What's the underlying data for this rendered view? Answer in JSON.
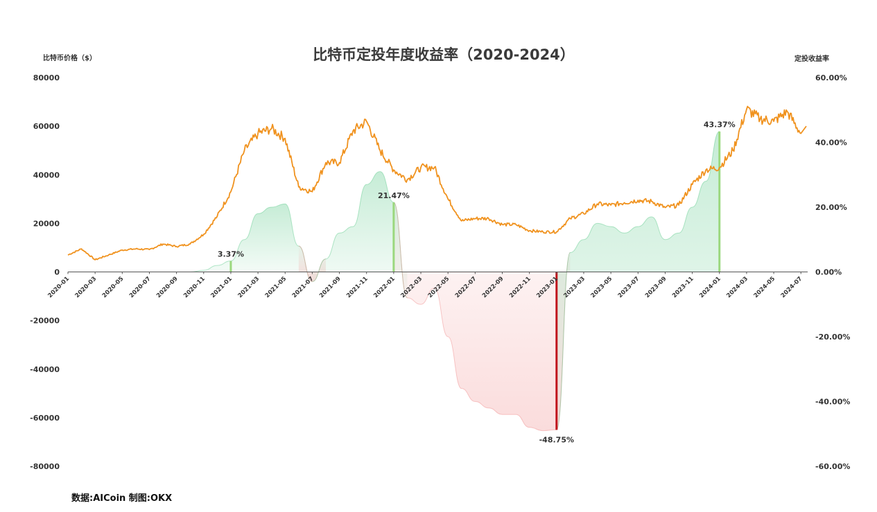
{
  "chart_data": {
    "type": "line",
    "title": "比特币定投年度收益率（2020-2024）",
    "ylabel": "比特币价格（$）",
    "y2label": "定投收益率",
    "ylim": [
      -80000,
      80000
    ],
    "y2lim": [
      -60,
      60
    ],
    "yticks": [
      "80000",
      "60000",
      "40000",
      "20000",
      "0",
      "-20000",
      "-40000",
      "-60000",
      "-80000"
    ],
    "y2ticks": [
      "60.00%",
      "40.00%",
      "20.00%",
      "0.00%",
      "-20.00%",
      "-40.00%",
      "-60.00%"
    ],
    "x_tick_labels": [
      "2020-01",
      "2020-03",
      "2020-05",
      "2020-07",
      "2020-09",
      "2020-11",
      "2021-01",
      "2021-03",
      "2021-05",
      "2021-07",
      "2021-09",
      "2021-11",
      "2022-01",
      "2022-03",
      "2022-05",
      "2022-07",
      "2022-09",
      "2022-11",
      "2023-01",
      "2023-03",
      "2023-05",
      "2023-07",
      "2023-09",
      "2023-11",
      "2024-01",
      "2024-03",
      "2024-05",
      "2024-07"
    ],
    "colors": {
      "price": "#f0921e",
      "positive": "#5cc98a",
      "negative": "#f08a8a",
      "bar_positive": "#9bd87e",
      "bar_negative": "#c0141c"
    },
    "series": [
      {
        "name": "比特币价格（$）",
        "axis": "left",
        "x": [
          "2020-01",
          "2020-02",
          "2020-03",
          "2020-04",
          "2020-05",
          "2020-06",
          "2020-07",
          "2020-08",
          "2020-09",
          "2020-10",
          "2020-11",
          "2020-12",
          "2021-01",
          "2021-02",
          "2021-03",
          "2021-04",
          "2021-05",
          "2021-06",
          "2021-07",
          "2021-08",
          "2021-09",
          "2021-10",
          "2021-11",
          "2021-12",
          "2022-01",
          "2022-02",
          "2022-03",
          "2022-04",
          "2022-05",
          "2022-06",
          "2022-07",
          "2022-08",
          "2022-09",
          "2022-10",
          "2022-11",
          "2022-12",
          "2023-01",
          "2023-02",
          "2023-03",
          "2023-04",
          "2023-05",
          "2023-06",
          "2023-07",
          "2023-08",
          "2023-09",
          "2023-10",
          "2023-11",
          "2023-12",
          "2024-01",
          "2024-02",
          "2024-03",
          "2024-04",
          "2024-05",
          "2024-06",
          "2024-07"
        ],
        "values": [
          7000,
          9500,
          5000,
          7000,
          9000,
          9500,
          9200,
          11500,
          10500,
          11500,
          15500,
          23000,
          33000,
          50000,
          57000,
          59000,
          55000,
          35000,
          33000,
          45000,
          45000,
          58000,
          62000,
          50000,
          42000,
          38000,
          43000,
          43000,
          30000,
          21000,
          22000,
          22000,
          19500,
          19500,
          17000,
          16500,
          16500,
          22000,
          24000,
          28000,
          27500,
          28500,
          29500,
          29000,
          26500,
          27500,
          36000,
          42000,
          43000,
          50000,
          67000,
          63000,
          62000,
          66000,
          57000
        ]
      },
      {
        "name": "定投收益率",
        "axis": "right",
        "x": [
          "2020-01",
          "2020-04",
          "2020-07",
          "2020-10",
          "2020-11",
          "2020-12",
          "2021-01",
          "2021-02",
          "2021-03",
          "2021-04",
          "2021-05",
          "2021-06",
          "2021-07",
          "2021-08",
          "2021-09",
          "2021-10",
          "2021-11",
          "2021-12",
          "2022-01",
          "2022-02",
          "2022-03",
          "2022-04",
          "2022-05",
          "2022-06",
          "2022-07",
          "2022-08",
          "2022-09",
          "2022-10",
          "2022-11",
          "2022-12",
          "2023-01",
          "2023-02",
          "2023-03",
          "2023-04",
          "2023-05",
          "2023-06",
          "2023-07",
          "2023-08",
          "2023-09",
          "2023-10",
          "2023-11",
          "2023-12",
          "2024-01"
        ],
        "values": [
          0,
          0,
          0,
          0,
          0.5,
          2,
          3.4,
          10,
          18,
          20,
          21,
          8,
          -3,
          4,
          12,
          14,
          27,
          31,
          21.5,
          -8,
          -10,
          -5,
          -20,
          -36,
          -40,
          -42,
          -44,
          -44,
          -48,
          -49,
          -48.75,
          6,
          10,
          15,
          14,
          12,
          14,
          17,
          10,
          12,
          20,
          28,
          43.37
        ]
      }
    ],
    "annotations": [
      {
        "x": "2021-01",
        "label": "3.37%",
        "value": 3.37
      },
      {
        "x": "2022-01",
        "label": "21.47%",
        "value": 21.47
      },
      {
        "x": "2023-01",
        "label": "-48.75%",
        "value": -48.75
      },
      {
        "x": "2024-01",
        "label": "43.37%",
        "value": 43.37
      }
    ],
    "grid": false,
    "legend": "none"
  },
  "source_text": "数据:AICoin  制图:OKX"
}
